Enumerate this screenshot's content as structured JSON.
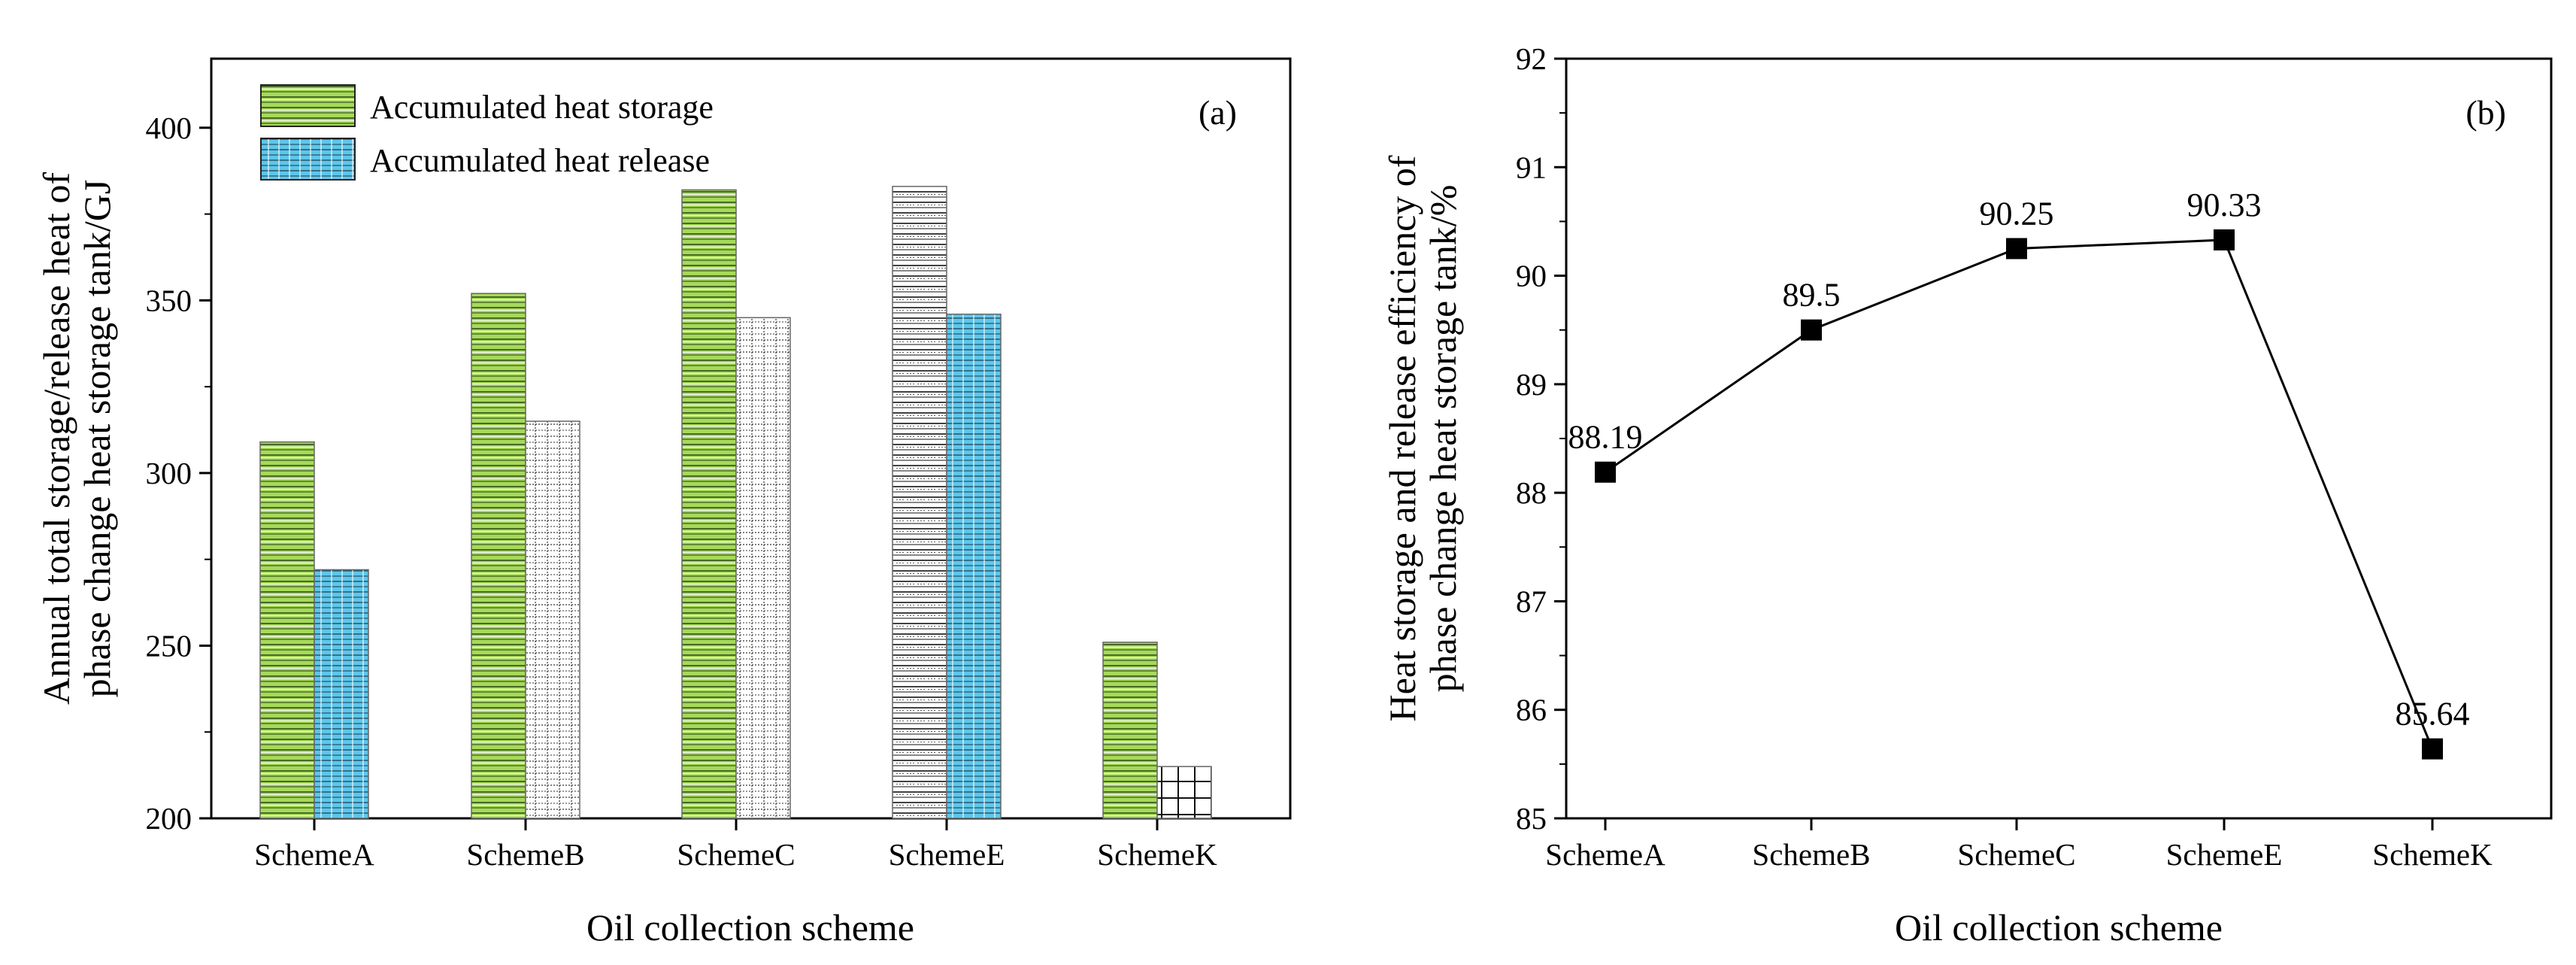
{
  "chart_data": [
    {
      "panel_label": "(a)",
      "type": "bar",
      "categories": [
        "SchemeA",
        "SchemeB",
        "SchemeC",
        "SchemeE",
        "SchemeK"
      ],
      "series": [
        {
          "name": "Accumulated heat storage",
          "values": [
            309,
            352,
            382,
            383,
            251
          ],
          "color": "#9fd34f"
        },
        {
          "name": "Accumulated heat release",
          "values": [
            272,
            315,
            345,
            346,
            215
          ],
          "color": "#59c2e6"
        }
      ],
      "xlabel": "Oil collection scheme",
      "ylabel_lines": [
        "Annual total storage/release heat of",
        "phase change heat storage tank/GJ"
      ],
      "ylim": [
        200,
        420
      ],
      "yticks": [
        200,
        250,
        300,
        350,
        400
      ],
      "legend_position": "top-left"
    },
    {
      "panel_label": "(b)",
      "type": "line",
      "categories": [
        "SchemeA",
        "SchemeB",
        "SchemeC",
        "SchemeE",
        "SchemeK"
      ],
      "series": [
        {
          "name": "Heat storage and release efficiency",
          "values": [
            88.19,
            89.5,
            90.25,
            90.33,
            85.64
          ],
          "color": "#000000"
        }
      ],
      "point_labels": [
        "88.19",
        "89.5",
        "90.25",
        "90.33",
        "85.64"
      ],
      "xlabel": "Oil collection scheme",
      "ylabel_lines": [
        "Heat storage and release efficiency of",
        "phase change heat storage tank/%"
      ],
      "ylim": [
        85,
        92
      ],
      "yticks": [
        85,
        86,
        87,
        88,
        89,
        90,
        91,
        92
      ]
    }
  ]
}
